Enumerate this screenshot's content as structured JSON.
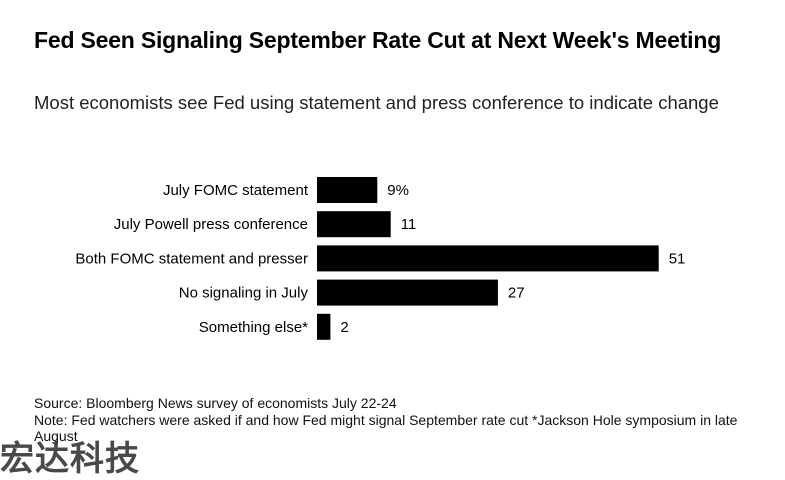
{
  "header": {
    "title": "Fed Seen Signaling September Rate Cut at Next Week's Meeting",
    "subtitle": "Most economists see Fed using statement and press conference to indicate change"
  },
  "chart_data": {
    "type": "bar",
    "orientation": "horizontal",
    "categories": [
      "July FOMC statement",
      "July Powell press conference",
      "Both FOMC statement and presser",
      "No signaling in July",
      "Something else*"
    ],
    "values": [
      9,
      11,
      51,
      27,
      2
    ],
    "data_labels": [
      "9%",
      "11",
      "51",
      "27",
      "2"
    ],
    "bar_color": "#000000",
    "grid": false,
    "legend": "none"
  },
  "footer": {
    "source": "Source: Bloomberg News survey of economists July 22-24",
    "note": "Note: Fed watchers were asked if and how Fed might signal September rate cut *Jackson Hole symposium in late August"
  },
  "watermark": "宏达科技"
}
